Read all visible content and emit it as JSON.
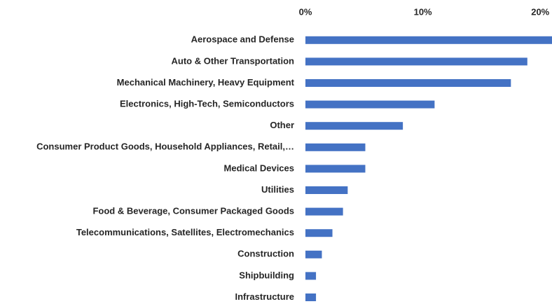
{
  "chart_data": {
    "type": "bar",
    "orientation": "horizontal",
    "categories": [
      "Aerospace and Defense",
      "Auto & Other Transportation",
      "Mechanical Machinery, Heavy Equipment",
      "Electronics, High-Tech, Semiconductors",
      "Other",
      "Consumer Product Goods, Household Appliances, Retail,…",
      "Medical Devices",
      "Utilities",
      "Food & Beverage, Consumer Packaged Goods",
      "Telecommunications, Satellites, Electromechanics",
      "Construction",
      "Shipbuilding",
      "Infrastructure"
    ],
    "values": [
      21,
      18.9,
      17.5,
      11.0,
      8.3,
      5.1,
      5.1,
      3.6,
      3.2,
      2.3,
      1.4,
      0.9,
      0.9
    ],
    "color": "#4472c4",
    "xlim": [
      0,
      21
    ],
    "xticks": [
      {
        "value": 0,
        "label": "0%"
      },
      {
        "value": 10,
        "label": "10%"
      },
      {
        "value": 20,
        "label": "20%"
      }
    ],
    "grid": false
  }
}
